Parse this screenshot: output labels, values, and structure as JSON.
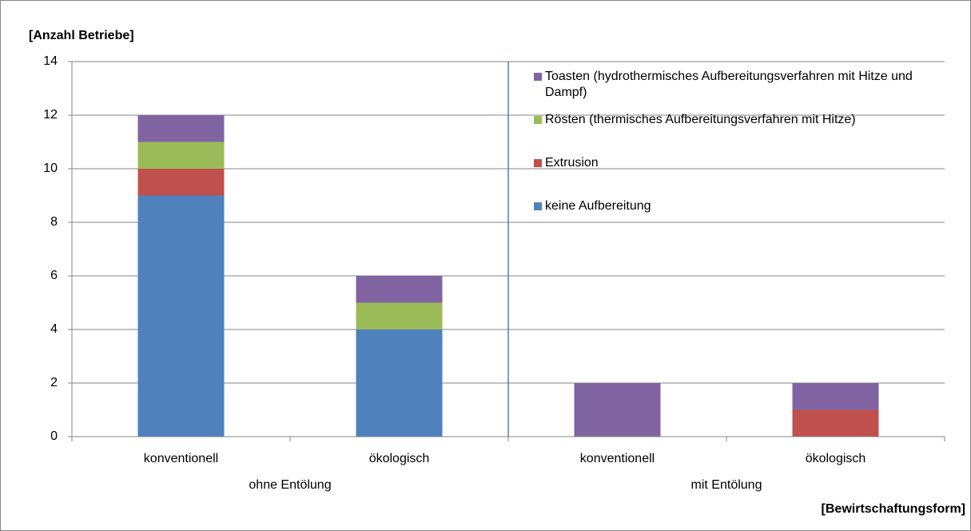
{
  "chart_data": {
    "type": "stacked_bar",
    "y_label": "[Anzahl Betriebe]",
    "x_label": "[Bewirtschaftungsform]",
    "categories": [
      "konventionell",
      "ökologisch",
      "konventionell",
      "ökologisch"
    ],
    "groups": [
      "ohne Entölung",
      "mit Entölung"
    ],
    "series": [
      {
        "name": "keine Aufbereitung",
        "color": "#4f81bd",
        "values": [
          9,
          4,
          0,
          0
        ]
      },
      {
        "name": "Extrusion",
        "color": "#c0504d",
        "values": [
          1,
          0,
          0,
          1
        ]
      },
      {
        "name": "Rösten (thermisches Aufbereitungsverfahren mit Hitze)",
        "color": "#9bbb59",
        "values": [
          1,
          1,
          0,
          0
        ]
      },
      {
        "name": "Toasten (hydrothermisches Aufbereitungsverfahren mit Hitze und Dampf)",
        "color": "#8064a2",
        "values": [
          1,
          1,
          2,
          1
        ]
      }
    ],
    "ylim": [
      0,
      14
    ],
    "yticks": [
      0,
      2,
      4,
      6,
      8,
      10,
      12,
      14
    ],
    "grid": true,
    "legend": "top-right"
  }
}
